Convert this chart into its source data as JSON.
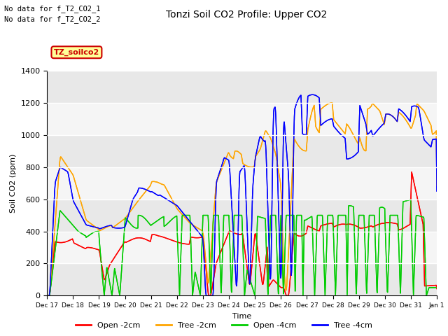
{
  "title": "Tonzi Soil CO2 Profile: Upper CO2",
  "ylabel": "Soil CO2 (ppm)",
  "xlabel": "Time",
  "ylim": [
    0,
    1400
  ],
  "annotations": [
    "No data for f_T2_CO2_1",
    "No data for f_T2_CO2_2"
  ],
  "legend_label": "TZ_soilco2",
  "bg_color": "#ffffff",
  "plot_bg": "#ffffff",
  "line_colors": {
    "open2": "#ff0000",
    "tree2": "#ffa500",
    "open4": "#00cc00",
    "tree4": "#0000ff"
  },
  "legend_labels": [
    "Open -2cm",
    "Tree -2cm",
    "Open -4cm",
    "Tree -4cm"
  ],
  "xtick_labels": [
    "Dec 17",
    "Dec 18",
    "Dec 19",
    "Dec 20",
    "Dec 21",
    "Dec 22",
    "Dec 23",
    "Dec 24",
    "Dec 25",
    "Dec 26",
    "Dec 27",
    "Dec 28",
    "Dec 29",
    "Dec 30",
    "Dec 31",
    "Jan 1"
  ],
  "n_days": 16
}
